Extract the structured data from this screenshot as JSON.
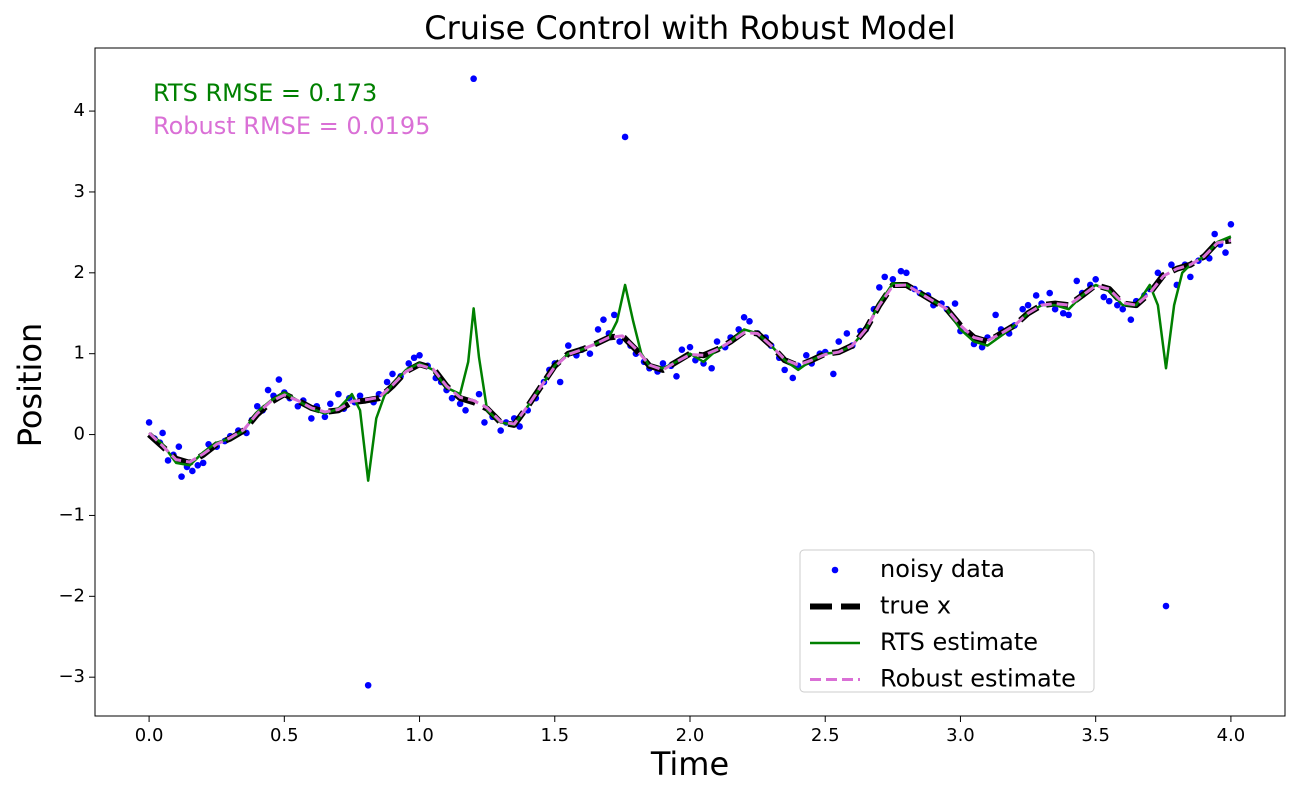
{
  "chart_data": {
    "type": "line",
    "title": "Cruise Control with Robust Model",
    "xlabel": "Time",
    "ylabel": "Position",
    "xlim": [
      -0.2,
      4.2
    ],
    "ylim": [
      -3.48,
      4.78
    ],
    "xticks": [
      {
        "value": 0,
        "label": "0.0"
      },
      0.5,
      {
        "value": 1,
        "label": "1.0"
      },
      1.5,
      {
        "value": 2,
        "label": "2.0"
      },
      2.5,
      {
        "value": 3,
        "label": "3.0"
      },
      3.5,
      {
        "value": 4,
        "label": "4.0"
      }
    ],
    "yticks": [
      {
        "value": -3,
        "label": "−3"
      },
      {
        "value": -2,
        "label": "−2"
      },
      {
        "value": -1,
        "label": "−1"
      },
      0,
      1,
      2,
      3,
      4
    ],
    "legend": "lower right",
    "annotations": [
      {
        "text": "RTS RMSE = 0.173",
        "color": "#008000"
      },
      {
        "text": "Robust RMSE = 0.0195",
        "color": "#da70d6"
      }
    ],
    "x": [
      0,
      0.05,
      0.1,
      0.15,
      0.2,
      0.25,
      0.3,
      0.35,
      0.4,
      0.45,
      0.5,
      0.55,
      0.6,
      0.65,
      0.7,
      0.75,
      0.8,
      0.85,
      0.9,
      0.95,
      1.0,
      1.05,
      1.1,
      1.15,
      1.2,
      1.25,
      1.3,
      1.35,
      1.4,
      1.45,
      1.5,
      1.55,
      1.6,
      1.65,
      1.7,
      1.75,
      1.8,
      1.85,
      1.9,
      1.95,
      2.0,
      2.05,
      2.1,
      2.15,
      2.2,
      2.25,
      2.3,
      2.35,
      2.4,
      2.45,
      2.5,
      2.55,
      2.6,
      2.65,
      2.7,
      2.75,
      2.8,
      2.85,
      2.9,
      2.95,
      3.0,
      3.05,
      3.1,
      3.15,
      3.2,
      3.25,
      3.3,
      3.35,
      3.4,
      3.45,
      3.5,
      3.55,
      3.6,
      3.65,
      3.7,
      3.75,
      3.8,
      3.85,
      3.9,
      3.95,
      4.0
    ],
    "series": [
      {
        "name": "noisy data",
        "color": "#0000ff",
        "style": "markers",
        "x": [
          0.0,
          0.02,
          0.04,
          0.05,
          0.07,
          0.09,
          0.11,
          0.12,
          0.14,
          0.16,
          0.18,
          0.2,
          0.22,
          0.25,
          0.28,
          0.3,
          0.33,
          0.36,
          0.38,
          0.4,
          0.42,
          0.44,
          0.46,
          0.48,
          0.5,
          0.52,
          0.55,
          0.57,
          0.6,
          0.62,
          0.65,
          0.67,
          0.7,
          0.72,
          0.74,
          0.76,
          0.78,
          0.81,
          0.83,
          0.85,
          0.88,
          0.9,
          0.93,
          0.96,
          0.98,
          1.0,
          1.03,
          1.06,
          1.08,
          1.1,
          1.12,
          1.15,
          1.17,
          1.2,
          1.22,
          1.24,
          1.27,
          1.3,
          1.32,
          1.35,
          1.37,
          1.4,
          1.43,
          1.46,
          1.48,
          1.5,
          1.52,
          1.55,
          1.58,
          1.6,
          1.63,
          1.66,
          1.68,
          1.7,
          1.72,
          1.74,
          1.76,
          1.78,
          1.8,
          1.83,
          1.85,
          1.88,
          1.9,
          1.93,
          1.95,
          1.97,
          2.0,
          2.02,
          2.05,
          2.08,
          2.1,
          2.13,
          2.15,
          2.18,
          2.2,
          2.22,
          2.25,
          2.28,
          2.3,
          2.33,
          2.35,
          2.38,
          2.4,
          2.43,
          2.45,
          2.48,
          2.5,
          2.53,
          2.55,
          2.58,
          2.6,
          2.63,
          2.65,
          2.68,
          2.7,
          2.72,
          2.75,
          2.78,
          2.8,
          2.83,
          2.85,
          2.88,
          2.9,
          2.93,
          2.95,
          2.98,
          3.0,
          3.03,
          3.05,
          3.08,
          3.1,
          3.13,
          3.15,
          3.18,
          3.2,
          3.23,
          3.25,
          3.28,
          3.3,
          3.33,
          3.35,
          3.38,
          3.4,
          3.43,
          3.45,
          3.48,
          3.5,
          3.53,
          3.55,
          3.58,
          3.6,
          3.63,
          3.65,
          3.68,
          3.7,
          3.73,
          3.76,
          3.78,
          3.8,
          3.83,
          3.85,
          3.88,
          3.9,
          3.92,
          3.94,
          3.96,
          3.98,
          4.0
        ],
        "values": [
          0.15,
          -0.05,
          -0.1,
          0.02,
          -0.32,
          -0.25,
          -0.15,
          -0.52,
          -0.4,
          -0.45,
          -0.38,
          -0.35,
          -0.12,
          -0.15,
          -0.08,
          -0.02,
          0.05,
          0.02,
          0.18,
          0.35,
          0.3,
          0.55,
          0.48,
          0.68,
          0.52,
          0.45,
          0.35,
          0.42,
          0.2,
          0.35,
          0.22,
          0.38,
          0.5,
          0.32,
          0.45,
          0.4,
          0.48,
          -3.1,
          0.4,
          0.5,
          0.65,
          0.75,
          0.72,
          0.88,
          0.95,
          0.98,
          0.85,
          0.7,
          0.65,
          0.55,
          0.45,
          0.38,
          0.3,
          4.4,
          0.5,
          0.15,
          0.22,
          0.05,
          0.15,
          0.2,
          0.1,
          0.3,
          0.45,
          0.65,
          0.8,
          0.88,
          0.65,
          1.1,
          0.98,
          1.05,
          1.0,
          1.3,
          1.42,
          1.25,
          1.48,
          1.15,
          3.68,
          1.1,
          1.0,
          0.9,
          0.82,
          0.78,
          0.88,
          0.85,
          0.72,
          1.05,
          1.08,
          0.92,
          0.88,
          0.82,
          1.15,
          1.08,
          1.2,
          1.3,
          1.45,
          1.4,
          1.25,
          1.2,
          1.1,
          0.95,
          0.8,
          0.7,
          0.85,
          0.98,
          0.88,
          1.0,
          1.02,
          0.75,
          1.15,
          1.25,
          1.1,
          1.28,
          1.3,
          1.55,
          1.82,
          1.95,
          1.92,
          2.02,
          2.0,
          1.8,
          1.75,
          1.72,
          1.6,
          1.62,
          1.55,
          1.62,
          1.28,
          1.25,
          1.12,
          1.08,
          1.2,
          1.48,
          1.3,
          1.25,
          1.35,
          1.55,
          1.6,
          1.72,
          1.62,
          1.75,
          1.55,
          1.5,
          1.48,
          1.9,
          1.75,
          1.85,
          1.92,
          1.7,
          1.65,
          1.6,
          1.55,
          1.42,
          1.65,
          1.72,
          1.8,
          2.0,
          -2.12,
          2.1,
          1.85,
          2.1,
          1.95,
          2.15,
          2.2,
          2.18,
          2.48,
          2.35,
          2.25,
          2.6
        ]
      },
      {
        "name": "true x",
        "color": "#000000",
        "style": "dashed-thick",
        "values": [
          0.0,
          -0.15,
          -0.3,
          -0.35,
          -0.25,
          -0.12,
          -0.05,
          0.05,
          0.25,
          0.4,
          0.5,
          0.42,
          0.33,
          0.28,
          0.3,
          0.4,
          0.42,
          0.45,
          0.6,
          0.78,
          0.87,
          0.82,
          0.6,
          0.45,
          0.4,
          0.32,
          0.15,
          0.12,
          0.35,
          0.6,
          0.85,
          1.0,
          1.05,
          1.12,
          1.2,
          1.22,
          1.05,
          0.85,
          0.8,
          0.9,
          1.0,
          0.98,
          1.05,
          1.15,
          1.27,
          1.25,
          1.1,
          0.92,
          0.85,
          0.92,
          1.0,
          1.02,
          1.1,
          1.3,
          1.6,
          1.85,
          1.85,
          1.75,
          1.65,
          1.55,
          1.35,
          1.2,
          1.15,
          1.25,
          1.35,
          1.5,
          1.6,
          1.62,
          1.6,
          1.72,
          1.85,
          1.8,
          1.62,
          1.6,
          1.75,
          1.97,
          2.05,
          2.1,
          2.2,
          2.38,
          2.4
        ]
      },
      {
        "name": "RTS estimate",
        "color": "#008000",
        "style": "solid",
        "x": [
          0,
          0.05,
          0.1,
          0.15,
          0.2,
          0.25,
          0.3,
          0.35,
          0.4,
          0.45,
          0.5,
          0.55,
          0.6,
          0.65,
          0.7,
          0.75,
          0.78,
          0.81,
          0.84,
          0.87,
          0.9,
          0.95,
          1.0,
          1.05,
          1.1,
          1.15,
          1.18,
          1.2,
          1.22,
          1.25,
          1.3,
          1.35,
          1.4,
          1.45,
          1.5,
          1.55,
          1.6,
          1.65,
          1.7,
          1.73,
          1.76,
          1.79,
          1.82,
          1.85,
          1.9,
          1.95,
          2.0,
          2.05,
          2.1,
          2.15,
          2.2,
          2.25,
          2.3,
          2.35,
          2.4,
          2.45,
          2.5,
          2.55,
          2.6,
          2.65,
          2.7,
          2.75,
          2.8,
          2.85,
          2.9,
          2.95,
          3.0,
          3.05,
          3.1,
          3.15,
          3.2,
          3.25,
          3.3,
          3.35,
          3.4,
          3.45,
          3.5,
          3.55,
          3.6,
          3.65,
          3.7,
          3.73,
          3.76,
          3.79,
          3.82,
          3.85,
          3.9,
          3.95,
          4.0
        ],
        "values": [
          0.02,
          -0.12,
          -0.35,
          -0.38,
          -0.22,
          -0.1,
          -0.05,
          0.05,
          0.28,
          0.42,
          0.52,
          0.42,
          0.32,
          0.26,
          0.32,
          0.5,
          0.3,
          -0.57,
          0.2,
          0.48,
          0.62,
          0.8,
          0.88,
          0.8,
          0.58,
          0.5,
          0.9,
          1.56,
          0.95,
          0.3,
          0.15,
          0.12,
          0.35,
          0.6,
          0.85,
          1.0,
          1.05,
          1.12,
          1.2,
          1.4,
          1.85,
          1.4,
          1.0,
          0.85,
          0.82,
          0.9,
          1.0,
          0.9,
          1.05,
          1.15,
          1.3,
          1.25,
          1.1,
          0.92,
          0.8,
          0.92,
          1.0,
          1.02,
          1.1,
          1.3,
          1.62,
          1.87,
          1.85,
          1.75,
          1.65,
          1.55,
          1.3,
          1.15,
          1.1,
          1.22,
          1.35,
          1.5,
          1.6,
          1.6,
          1.55,
          1.72,
          1.85,
          1.78,
          1.6,
          1.6,
          1.85,
          1.6,
          0.82,
          1.6,
          2.0,
          2.1,
          2.2,
          2.38,
          2.45
        ]
      },
      {
        "name": "Robust estimate",
        "color": "#da70d6",
        "style": "dashed",
        "values": [
          0.02,
          -0.14,
          -0.31,
          -0.34,
          -0.24,
          -0.12,
          -0.04,
          0.06,
          0.26,
          0.41,
          0.49,
          0.42,
          0.33,
          0.28,
          0.31,
          0.41,
          0.43,
          0.46,
          0.61,
          0.78,
          0.86,
          0.81,
          0.6,
          0.46,
          0.42,
          0.33,
          0.16,
          0.13,
          0.35,
          0.6,
          0.84,
          0.99,
          1.05,
          1.12,
          1.2,
          1.22,
          1.06,
          0.86,
          0.8,
          0.9,
          0.99,
          0.98,
          1.05,
          1.15,
          1.26,
          1.25,
          1.1,
          0.93,
          0.86,
          0.92,
          0.99,
          1.02,
          1.1,
          1.3,
          1.6,
          1.84,
          1.85,
          1.75,
          1.65,
          1.55,
          1.35,
          1.2,
          1.16,
          1.25,
          1.35,
          1.5,
          1.6,
          1.62,
          1.6,
          1.72,
          1.84,
          1.8,
          1.63,
          1.6,
          1.75,
          1.96,
          2.05,
          2.1,
          2.2,
          2.37,
          2.4
        ]
      }
    ]
  }
}
